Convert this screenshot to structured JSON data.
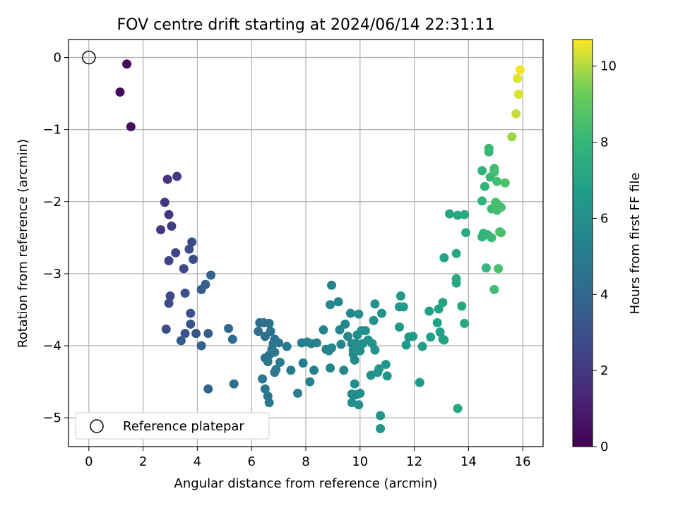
{
  "chart_data": {
    "type": "scatter",
    "title": "FOV centre drift starting at 2024/06/14 22:31:11",
    "xlabel": "Angular distance from reference (arcmin)",
    "ylabel": "Rotation from reference (arcmin)",
    "xlim": [
      -0.75,
      16.75
    ],
    "ylim": [
      -5.4,
      0.25
    ],
    "xticks": [
      0,
      2,
      4,
      6,
      8,
      10,
      12,
      14,
      16
    ],
    "yticks": [
      0,
      -1,
      -2,
      -3,
      -4,
      -5
    ],
    "grid": true,
    "colorbar": {
      "label": "Hours from first FF file",
      "range": [
        0,
        10.7
      ],
      "ticks": [
        0,
        2,
        4,
        6,
        8,
        10
      ],
      "colormap": "viridis"
    },
    "legend": {
      "position": "lower-left",
      "entries": [
        "Reference platepar"
      ]
    },
    "reference_point": {
      "x": 0,
      "y": 0
    },
    "points": [
      [
        1.4,
        -0.09,
        0.1
      ],
      [
        1.15,
        -0.48,
        0.3
      ],
      [
        1.55,
        -0.96,
        0.4
      ],
      [
        2.9,
        -1.69,
        1.8
      ],
      [
        3.25,
        -1.65,
        2.2
      ],
      [
        2.8,
        -2.01,
        1.9
      ],
      [
        2.95,
        -2.18,
        2.0
      ],
      [
        2.65,
        -2.39,
        2.1
      ],
      [
        3.05,
        -2.34,
        2.2
      ],
      [
        3.2,
        -2.71,
        2.5
      ],
      [
        2.95,
        -2.82,
        2.4
      ],
      [
        3.5,
        -2.93,
        2.6
      ],
      [
        3.7,
        -2.66,
        2.7
      ],
      [
        3.8,
        -2.56,
        2.8
      ],
      [
        3.85,
        -2.8,
        2.9
      ],
      [
        3.0,
        -3.31,
        2.7
      ],
      [
        2.95,
        -3.41,
        2.8
      ],
      [
        3.55,
        -3.27,
        3.0
      ],
      [
        3.75,
        -3.55,
        3.1
      ],
      [
        2.85,
        -3.77,
        2.9
      ],
      [
        3.75,
        -3.7,
        3.3
      ],
      [
        3.55,
        -3.83,
        3.2
      ],
      [
        3.4,
        -3.93,
        3.4
      ],
      [
        3.95,
        -3.83,
        3.3
      ],
      [
        4.4,
        -3.83,
        3.5
      ],
      [
        4.15,
        -3.22,
        3.5
      ],
      [
        4.3,
        -3.15,
        3.6
      ],
      [
        4.5,
        -3.02,
        3.7
      ],
      [
        4.15,
        -4.0,
        3.8
      ],
      [
        4.4,
        -4.6,
        3.9
      ],
      [
        5.15,
        -3.76,
        4.1
      ],
      [
        5.3,
        -3.91,
        4.2
      ],
      [
        5.35,
        -4.53,
        4.2
      ],
      [
        6.3,
        -3.68,
        4.3
      ],
      [
        6.45,
        -3.68,
        4.4
      ],
      [
        6.25,
        -3.8,
        4.4
      ],
      [
        6.5,
        -3.87,
        4.5
      ],
      [
        6.65,
        -3.69,
        4.5
      ],
      [
        6.7,
        -3.8,
        4.6
      ],
      [
        6.85,
        -3.91,
        4.6
      ],
      [
        6.8,
        -3.97,
        4.7
      ],
      [
        6.75,
        -4.05,
        4.7
      ],
      [
        7.0,
        -3.96,
        4.8
      ],
      [
        7.3,
        -4.01,
        4.8
      ],
      [
        6.5,
        -4.17,
        4.7
      ],
      [
        6.65,
        -4.13,
        4.8
      ],
      [
        6.6,
        -4.22,
        4.8
      ],
      [
        6.85,
        -4.09,
        4.9
      ],
      [
        6.9,
        -4.33,
        4.9
      ],
      [
        7.05,
        -4.23,
        5.0
      ],
      [
        6.4,
        -4.46,
        4.7
      ],
      [
        6.85,
        -4.37,
        4.9
      ],
      [
        6.5,
        -4.6,
        4.8
      ],
      [
        6.6,
        -4.7,
        4.8
      ],
      [
        6.65,
        -4.79,
        4.9
      ],
      [
        7.45,
        -4.34,
        5.0
      ],
      [
        7.7,
        -4.66,
        5.1
      ],
      [
        7.85,
        -3.96,
        5.1
      ],
      [
        8.05,
        -3.95,
        5.2
      ],
      [
        8.2,
        -3.97,
        5.2
      ],
      [
        8.4,
        -3.96,
        5.3
      ],
      [
        7.9,
        -4.24,
        5.2
      ],
      [
        8.15,
        -4.5,
        5.3
      ],
      [
        8.3,
        -4.34,
        5.3
      ],
      [
        8.65,
        -3.78,
        5.4
      ],
      [
        8.75,
        -4.05,
        5.4
      ],
      [
        8.85,
        -4.07,
        5.5
      ],
      [
        8.95,
        -4.03,
        5.5
      ],
      [
        8.9,
        -4.31,
        5.5
      ],
      [
        8.9,
        -3.43,
        5.5
      ],
      [
        8.95,
        -3.16,
        5.5
      ],
      [
        9.2,
        -3.39,
        5.6
      ],
      [
        9.25,
        -3.78,
        5.6
      ],
      [
        9.3,
        -3.98,
        5.6
      ],
      [
        9.4,
        -4.34,
        5.6
      ],
      [
        9.45,
        -3.7,
        5.7
      ],
      [
        9.55,
        -3.87,
        5.7
      ],
      [
        9.65,
        -3.55,
        5.7
      ],
      [
        9.7,
        -3.97,
        5.7
      ],
      [
        9.75,
        -4.06,
        5.8
      ],
      [
        9.75,
        -4.12,
        5.8
      ],
      [
        9.8,
        -4.2,
        5.8
      ],
      [
        9.7,
        -4.67,
        5.8
      ],
      [
        9.7,
        -4.79,
        5.8
      ],
      [
        9.8,
        -4.53,
        5.9
      ],
      [
        9.85,
        -4.68,
        5.9
      ],
      [
        9.85,
        -3.97,
        5.9
      ],
      [
        9.9,
        -3.85,
        5.9
      ],
      [
        9.95,
        -3.56,
        5.9
      ],
      [
        9.95,
        -4.07,
        6.0
      ],
      [
        10.0,
        -4.07,
        6.0
      ],
      [
        10.05,
        -3.79,
        6.0
      ],
      [
        10.1,
        -3.97,
        6.0
      ],
      [
        10.2,
        -3.79,
        6.0
      ],
      [
        10.3,
        -3.92,
        6.1
      ],
      [
        10.0,
        -4.66,
        6.0
      ],
      [
        9.95,
        -4.82,
        6.0
      ],
      [
        10.45,
        -3.97,
        6.1
      ],
      [
        10.5,
        -3.65,
        6.1
      ],
      [
        10.55,
        -3.42,
        6.1
      ],
      [
        10.55,
        -4.06,
        6.2
      ],
      [
        10.4,
        -4.41,
        6.1
      ],
      [
        10.65,
        -4.37,
        6.2
      ],
      [
        10.7,
        -4.32,
        6.2
      ],
      [
        10.8,
        -3.55,
        6.2
      ],
      [
        10.95,
        -4.26,
        6.3
      ],
      [
        11.0,
        -4.42,
        6.3
      ],
      [
        10.75,
        -4.97,
        6.2
      ],
      [
        10.75,
        -5.15,
        6.2
      ],
      [
        11.45,
        -3.74,
        6.4
      ],
      [
        11.45,
        -3.46,
        6.4
      ],
      [
        11.5,
        -3.31,
        6.4
      ],
      [
        11.6,
        -3.46,
        6.5
      ],
      [
        11.7,
        -3.99,
        6.5
      ],
      [
        11.8,
        -3.88,
        6.5
      ],
      [
        11.95,
        -3.87,
        6.6
      ],
      [
        12.2,
        -4.51,
        6.6
      ],
      [
        12.3,
        -4.01,
        6.7
      ],
      [
        12.55,
        -3.52,
        6.8
      ],
      [
        12.6,
        -3.88,
        6.8
      ],
      [
        12.85,
        -3.68,
        6.9
      ],
      [
        12.9,
        -3.49,
        6.9
      ],
      [
        12.95,
        -3.81,
        6.9
      ],
      [
        13.05,
        -3.91,
        7.0
      ],
      [
        13.1,
        -3.92,
        7.0
      ],
      [
        13.05,
        -3.4,
        7.0
      ],
      [
        13.1,
        -2.78,
        7.0
      ],
      [
        13.3,
        -2.17,
        7.1
      ],
      [
        13.55,
        -2.72,
        7.2
      ],
      [
        13.55,
        -3.07,
        7.2
      ],
      [
        13.55,
        -3.13,
        7.2
      ],
      [
        13.6,
        -2.19,
        7.2
      ],
      [
        13.6,
        -4.87,
        7.2
      ],
      [
        13.75,
        -3.45,
        7.3
      ],
      [
        13.85,
        -3.69,
        7.3
      ],
      [
        13.85,
        -2.18,
        7.3
      ],
      [
        13.9,
        -2.43,
        7.4
      ],
      [
        14.5,
        -1.57,
        7.8
      ],
      [
        14.5,
        -1.99,
        7.8
      ],
      [
        14.5,
        -2.49,
        7.8
      ],
      [
        14.55,
        -2.44,
        7.9
      ],
      [
        14.6,
        -1.79,
        7.9
      ],
      [
        14.7,
        -2.46,
        7.9
      ],
      [
        14.65,
        -2.92,
        8.0
      ],
      [
        14.75,
        -1.26,
        8.1
      ],
      [
        14.75,
        -1.31,
        8.1
      ],
      [
        14.8,
        -1.66,
        8.1
      ],
      [
        14.85,
        -2.1,
        8.2
      ],
      [
        14.85,
        -2.5,
        8.2
      ],
      [
        14.95,
        -1.54,
        8.3
      ],
      [
        14.95,
        -1.59,
        8.3
      ],
      [
        14.95,
        -3.22,
        8.3
      ],
      [
        15.0,
        -2.01,
        8.4
      ],
      [
        15.05,
        -1.72,
        8.4
      ],
      [
        15.05,
        -2.12,
        8.4
      ],
      [
        15.1,
        -2.05,
        8.4
      ],
      [
        15.15,
        -2.42,
        8.5
      ],
      [
        15.2,
        -2.43,
        8.5
      ],
      [
        15.2,
        -2.08,
        8.5
      ],
      [
        15.1,
        -2.93,
        8.5
      ],
      [
        15.35,
        -1.74,
        8.6
      ],
      [
        15.6,
        -1.1,
        9.8
      ],
      [
        15.75,
        -0.78,
        10.2
      ],
      [
        15.8,
        -0.29,
        10.4
      ],
      [
        15.85,
        -0.51,
        10.4
      ],
      [
        15.9,
        -0.17,
        10.6
      ]
    ]
  }
}
